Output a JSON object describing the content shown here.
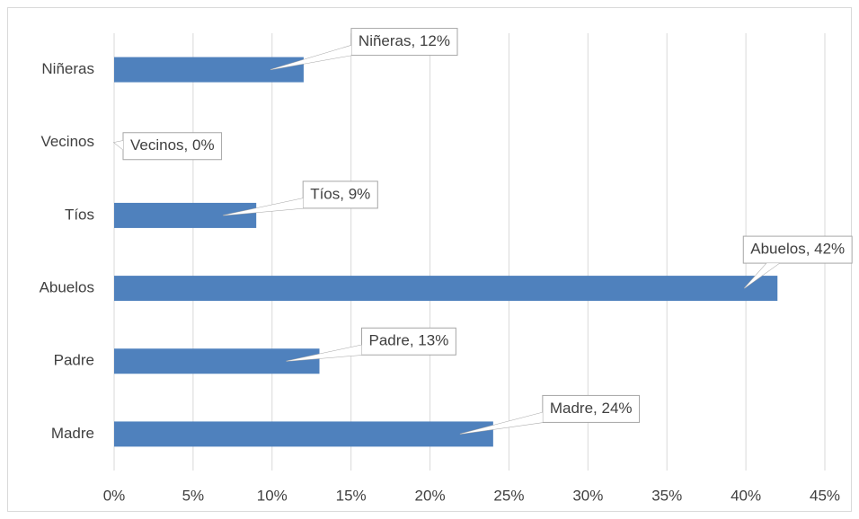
{
  "chart_data": {
    "type": "bar",
    "orientation": "horizontal",
    "categories": [
      "Madre",
      "Padre",
      "Abuelos",
      "Tíos",
      "Vecinos",
      "Niñeras"
    ],
    "values": [
      24,
      13,
      42,
      9,
      0,
      12
    ],
    "value_labels": [
      "Madre, 24%",
      "Padre, 13%",
      "Abuelos, 42%",
      "Tíos, 9%",
      "Vecinos, 0%",
      "Niñeras, 12%"
    ],
    "color": "#4f81bd",
    "xlim": [
      0,
      45
    ],
    "xticks": [
      {
        "value": 0,
        "label": "0%"
      },
      {
        "value": 5,
        "label": "5%"
      },
      {
        "value": 10,
        "label": "10%"
      },
      {
        "value": 15,
        "label": "15%"
      },
      {
        "value": 20,
        "label": "20%"
      },
      {
        "value": 25,
        "label": "25%"
      },
      {
        "value": 30,
        "label": "30%"
      },
      {
        "value": 35,
        "label": "35%"
      },
      {
        "value": 40,
        "label": "40%"
      },
      {
        "value": 45,
        "label": "45%"
      }
    ],
    "grid": true
  }
}
